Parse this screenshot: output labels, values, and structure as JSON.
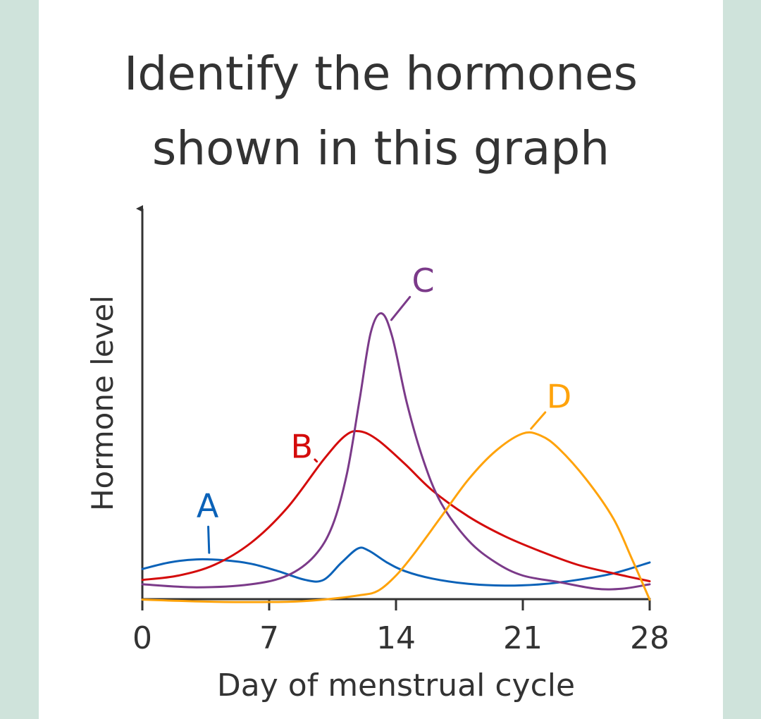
{
  "chart_data": {
    "type": "line",
    "title": "Identify the hormones shown in this graph",
    "title_lines": [
      "Identify the hormones",
      "shown in this graph"
    ],
    "xlabel": "Day of menstrual cycle",
    "ylabel": "Hormone level",
    "xlim": [
      0,
      28
    ],
    "ylim": [
      0,
      10
    ],
    "x_ticks": [
      0,
      7,
      14,
      21,
      28
    ],
    "x_tick_labels": [
      "0",
      "7",
      "14",
      "21",
      "28"
    ],
    "grid": false,
    "legend": "none",
    "series": [
      {
        "name": "A",
        "color": "#0b62b8",
        "label_at": [
          3.6,
          1.85
        ],
        "points": [
          [
            0,
            0.4
          ],
          [
            1.5,
            0.55
          ],
          [
            3,
            0.62
          ],
          [
            4.5,
            0.6
          ],
          [
            6,
            0.52
          ],
          [
            7.5,
            0.35
          ],
          [
            9,
            0.15
          ],
          [
            10,
            0.15
          ],
          [
            11,
            0.55
          ],
          [
            11.9,
            0.87
          ],
          [
            12.5,
            0.82
          ],
          [
            13.5,
            0.55
          ],
          [
            14.5,
            0.35
          ],
          [
            16,
            0.18
          ],
          [
            18,
            0.06
          ],
          [
            20,
            0.02
          ],
          [
            22,
            0.05
          ],
          [
            24,
            0.15
          ],
          [
            26,
            0.3
          ],
          [
            28,
            0.55
          ]
        ]
      },
      {
        "name": "B",
        "color": "#d40b0b",
        "label_at": [
          8.8,
          3.2
        ],
        "points": [
          [
            0,
            0.15
          ],
          [
            2,
            0.25
          ],
          [
            4,
            0.5
          ],
          [
            6,
            1.0
          ],
          [
            8,
            1.8
          ],
          [
            10,
            2.9
          ],
          [
            11.2,
            3.45
          ],
          [
            12,
            3.55
          ],
          [
            13,
            3.35
          ],
          [
            14.5,
            2.8
          ],
          [
            16,
            2.2
          ],
          [
            18,
            1.6
          ],
          [
            20,
            1.15
          ],
          [
            22,
            0.8
          ],
          [
            24,
            0.5
          ],
          [
            26,
            0.3
          ],
          [
            28,
            0.12
          ]
        ]
      },
      {
        "name": "C",
        "color": "#7b3a89",
        "label_at": [
          15.5,
          7.0
        ],
        "points": [
          [
            0,
            0.05
          ],
          [
            3,
            -0.02
          ],
          [
            6,
            0.05
          ],
          [
            8,
            0.25
          ],
          [
            9.5,
            0.7
          ],
          [
            10.5,
            1.4
          ],
          [
            11.3,
            2.6
          ],
          [
            12,
            4.3
          ],
          [
            12.6,
            5.8
          ],
          [
            13.2,
            6.25
          ],
          [
            13.8,
            5.7
          ],
          [
            14.6,
            4.2
          ],
          [
            15.5,
            2.9
          ],
          [
            16.5,
            1.9
          ],
          [
            18,
            1.05
          ],
          [
            19.5,
            0.55
          ],
          [
            21,
            0.25
          ],
          [
            23,
            0.1
          ],
          [
            25,
            -0.05
          ],
          [
            26.5,
            -0.05
          ],
          [
            28,
            0.05
          ]
        ]
      },
      {
        "name": "D",
        "color": "#ffa30b",
        "label_at": [
          23.0,
          4.35
        ],
        "points": [
          [
            0,
            -0.3
          ],
          [
            4,
            -0.35
          ],
          [
            8,
            -0.35
          ],
          [
            10,
            -0.3
          ],
          [
            12,
            -0.2
          ],
          [
            13,
            -0.1
          ],
          [
            14,
            0.25
          ],
          [
            15,
            0.75
          ],
          [
            16.5,
            1.6
          ],
          [
            18,
            2.45
          ],
          [
            19.5,
            3.1
          ],
          [
            21,
            3.5
          ],
          [
            22,
            3.45
          ],
          [
            23,
            3.15
          ],
          [
            24.5,
            2.45
          ],
          [
            26,
            1.55
          ],
          [
            27,
            0.65
          ],
          [
            28,
            -0.3
          ]
        ]
      }
    ]
  }
}
